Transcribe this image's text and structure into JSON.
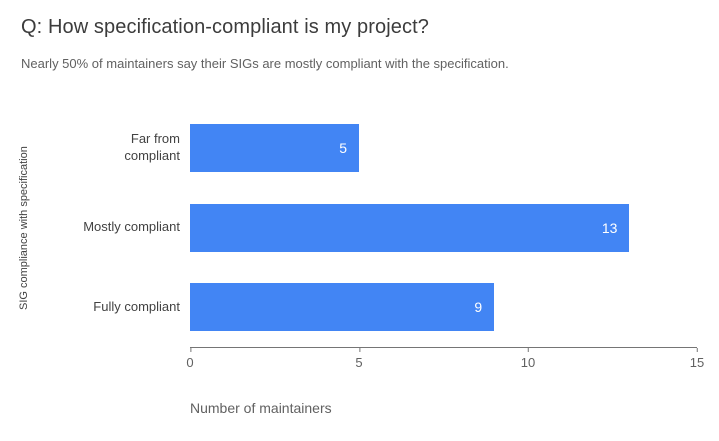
{
  "chart_data": {
    "type": "bar",
    "orientation": "horizontal",
    "title": "Q: How specification-compliant is my project?",
    "subtitle": "Nearly 50% of maintainers say their SIGs are mostly compliant with the specification.",
    "categories": [
      "Far from compliant",
      "Mostly compliant",
      "Fully compliant"
    ],
    "values": [
      5,
      13,
      9
    ],
    "xlabel": "Number of maintainers",
    "ylabel": "SIG compliance with specification",
    "xlim": [
      0,
      15
    ],
    "xticks": [
      0,
      5,
      10,
      15
    ],
    "bar_color": "#4285f4",
    "value_label_color": "#ffffff",
    "axis_color": "#757575",
    "grid": false,
    "legend": "none"
  }
}
